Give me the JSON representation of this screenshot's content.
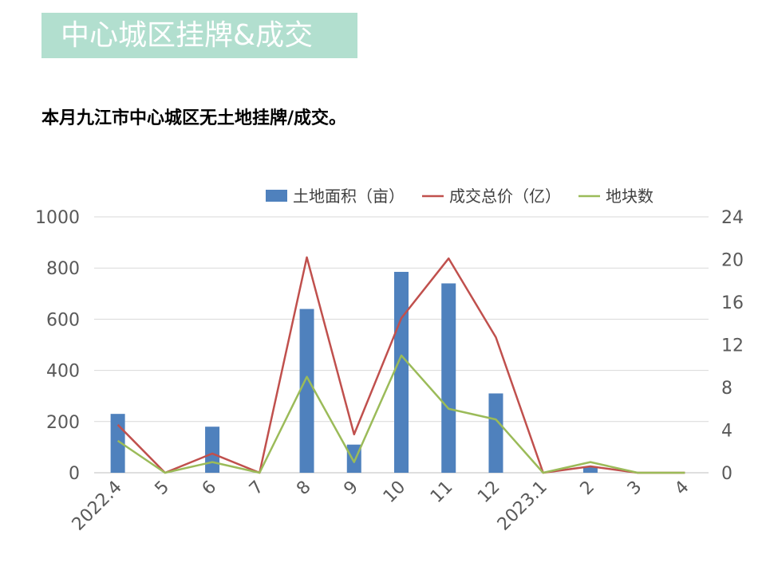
{
  "header": {
    "title": "中心城区挂牌&成交"
  },
  "subtitle": "本月九江市中心城区无土地挂牌/成交。",
  "chart_data": {
    "type": "bar",
    "categories": [
      "2022.4",
      "5",
      "6",
      "7",
      "8",
      "9",
      "10",
      "11",
      "12",
      "2023.1",
      "2",
      "3",
      "4"
    ],
    "series": [
      {
        "name": "土地面积（亩）",
        "type": "bar",
        "axis": "left",
        "color": "#4f81bd",
        "values": [
          230,
          0,
          180,
          0,
          640,
          110,
          785,
          740,
          310,
          0,
          25,
          0,
          0
        ]
      },
      {
        "name": "成交总价（亿）",
        "type": "line",
        "axis": "right",
        "color": "#c0504d",
        "values": [
          4.5,
          0,
          1.8,
          0,
          20.2,
          3.6,
          14.5,
          20.1,
          12.7,
          0,
          0.6,
          0,
          0
        ]
      },
      {
        "name": "地块数",
        "type": "line",
        "axis": "right",
        "color": "#9bbb59",
        "values": [
          3,
          0,
          1,
          0,
          9,
          1,
          11,
          6,
          5,
          0,
          1,
          0,
          0
        ]
      }
    ],
    "ylim": [
      0,
      1000
    ],
    "yticks": [
      0,
      200,
      400,
      600,
      800,
      1000
    ],
    "y2lim": [
      0,
      24
    ],
    "y2ticks": [
      0,
      4,
      8,
      12,
      16,
      20,
      24
    ],
    "grid": true,
    "legend_position": "top-right"
  }
}
